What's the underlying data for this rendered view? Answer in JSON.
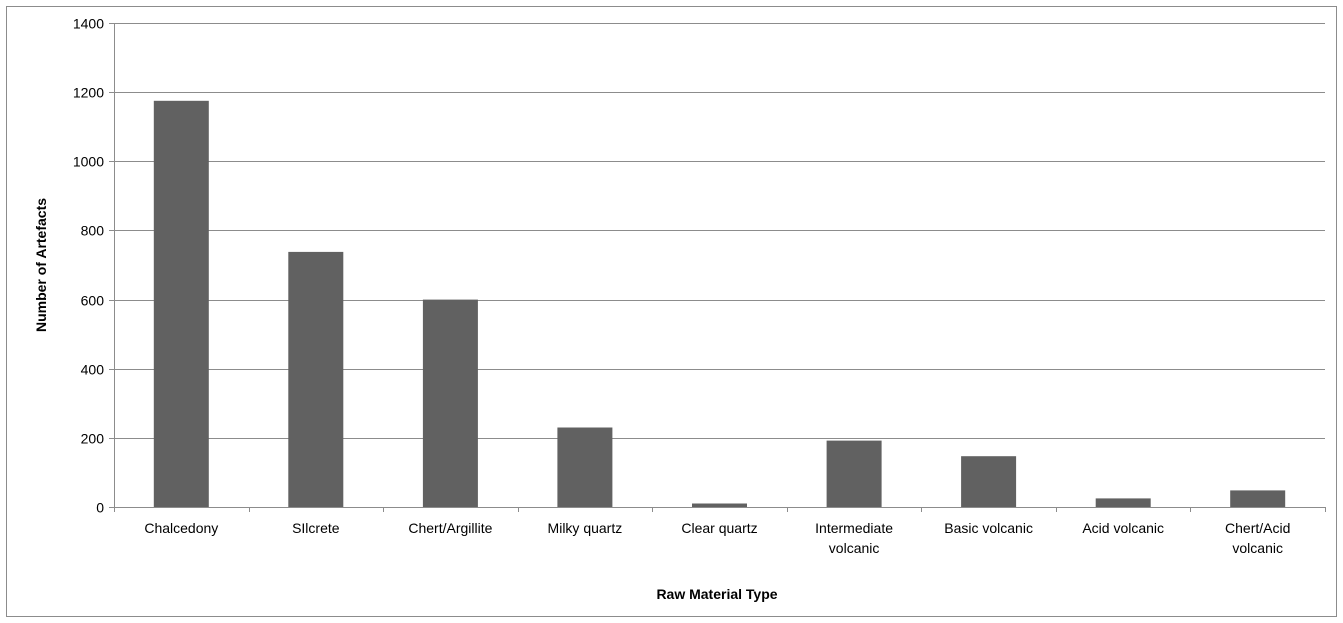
{
  "chart_data": {
    "type": "bar",
    "categories": [
      "Chalcedony",
      "SIlcrete",
      "Chert/Argillite",
      "Milky quartz",
      "Clear quartz",
      "Intermediate volcanic",
      "Basic volcanic",
      "Acid volcanic",
      "Chert/Acid volcanic"
    ],
    "category_lines": [
      [
        "Chalcedony"
      ],
      [
        "SIlcrete"
      ],
      [
        "Chert/Argillite"
      ],
      [
        "Milky quartz"
      ],
      [
        "Clear quartz"
      ],
      [
        "Intermediate",
        "volcanic"
      ],
      [
        "Basic volcanic"
      ],
      [
        "Acid volcanic"
      ],
      [
        "Chert/Acid",
        "volcanic"
      ]
    ],
    "values": [
      1175,
      738,
      600,
      230,
      10,
      192,
      147,
      25,
      48
    ],
    "xlabel": "Raw Material Type",
    "ylabel": "Number of Artefacts",
    "ylim": [
      0,
      1400
    ],
    "yticks": [
      0,
      200,
      400,
      600,
      800,
      1000,
      1200,
      1400
    ],
    "grid": true,
    "legend": "none",
    "bar_color": "#616161"
  }
}
